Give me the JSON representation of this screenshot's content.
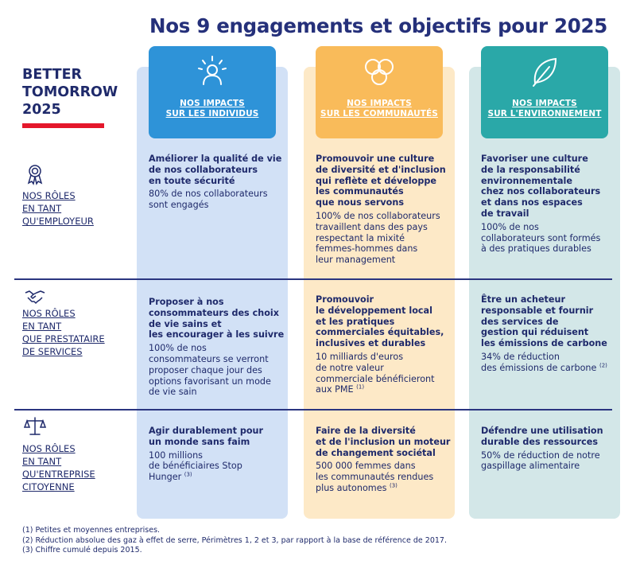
{
  "title": "Nos 9 engagements et objectifs pour 2025",
  "brand": {
    "line1": "BETTER",
    "line2": "TOMORROW",
    "line3": "2025",
    "accent": "#e4172b"
  },
  "columns": [
    {
      "l1": "NOS IMPACTS",
      "l2": "SUR LES INDIVIDUS",
      "icon": "person-icon",
      "color": "#2e93d8"
    },
    {
      "l1": "NOS IMPACTS",
      "l2": "SUR LES COMMUNAUTÉS",
      "icon": "rings-icon",
      "color": "#f9bb5a"
    },
    {
      "l1": "NOS IMPACTS",
      "l2": "SUR L'ENVIRONNEMENT",
      "icon": "leaf-icon",
      "color": "#2aa8a8"
    }
  ],
  "rows": [
    {
      "role": [
        "NOS RÔLES",
        "EN TANT",
        "QU'EMPLOYEUR"
      ],
      "icon": "award-icon",
      "cells": [
        {
          "bold": [
            "Améliorer la qualité de vie",
            "de nos collaborateurs",
            "en toute sécurité"
          ],
          "plain": [
            "80% de nos collaborateurs",
            "sont engagés"
          ]
        },
        {
          "bold": [
            "Promouvoir une culture",
            "de diversité et d'inclusion",
            "qui reflète et développe",
            "les communautés",
            "que nous servons"
          ],
          "plain": [
            "100% de nos collaborateurs",
            "travaillent dans des pays",
            "respectant la mixité",
            "femmes-hommes dans",
            "leur management"
          ]
        },
        {
          "bold": [
            "Favoriser une culture",
            "de la responsabilité",
            "environnementale",
            "chez nos collaborateurs",
            "et dans nos espaces",
            "de travail"
          ],
          "plain": [
            "100% de nos",
            "collaborateurs sont formés",
            "à des pratiques durables"
          ]
        }
      ]
    },
    {
      "role": [
        "NOS RÔLES",
        "EN TANT",
        "QUE PRESTATAIRE",
        "DE SERVICES"
      ],
      "icon": "handshake-icon",
      "cells": [
        {
          "bold": [
            "Proposer à nos",
            "consommateurs des choix",
            "de vie sains et",
            "les encourager à les suivre"
          ],
          "plain": [
            "100% de nos",
            "consommateurs se verront",
            "proposer chaque jour des",
            "options favorisant un mode",
            "de vie sain"
          ]
        },
        {
          "bold": [
            "Promouvoir",
            "le développement local",
            "et les pratiques",
            "commerciales équitables,",
            "inclusives et durables"
          ],
          "plain": [
            "10 milliards d'euros",
            "de notre valeur",
            "commerciale bénéficieront",
            "aux PME"
          ],
          "note": "(1)"
        },
        {
          "bold": [
            "Être un acheteur",
            "responsable et fournir",
            "des services de",
            "gestion qui réduisent",
            "les émissions de carbone"
          ],
          "plain": [
            "34% de réduction",
            "des émissions de carbone"
          ],
          "note": "(2)"
        }
      ]
    },
    {
      "role": [
        "NOS RÔLES",
        "EN TANT",
        "QU'ENTREPRISE",
        "CITOYENNE"
      ],
      "icon": "scales-icon",
      "cells": [
        {
          "bold": [
            "Agir durablement pour",
            "un monde sans faim"
          ],
          "plain": [
            "100 millions",
            "de bénéficiaires Stop",
            "Hunger"
          ],
          "note": "(3)"
        },
        {
          "bold": [
            "Faire de la diversité",
            "et de l'inclusion un moteur",
            "de changement sociétal"
          ],
          "plain": [
            "500 000 femmes dans",
            "les communautés rendues",
            "plus autonomes"
          ],
          "note": "(3)"
        },
        {
          "bold": [
            "Défendre une utilisation",
            "durable des ressources"
          ],
          "plain": [
            "50% de réduction de notre",
            "gaspillage alimentaire"
          ]
        }
      ]
    }
  ],
  "footnotes": [
    "(1)  Petites et moyennes entreprises.",
    "(2)  Réduction absolue des gaz à effet de serre, Périmètres 1, 2 et 3, par rapport à la base de référence de 2017.",
    "(3)  Chiffre cumulé depuis 2015."
  ]
}
